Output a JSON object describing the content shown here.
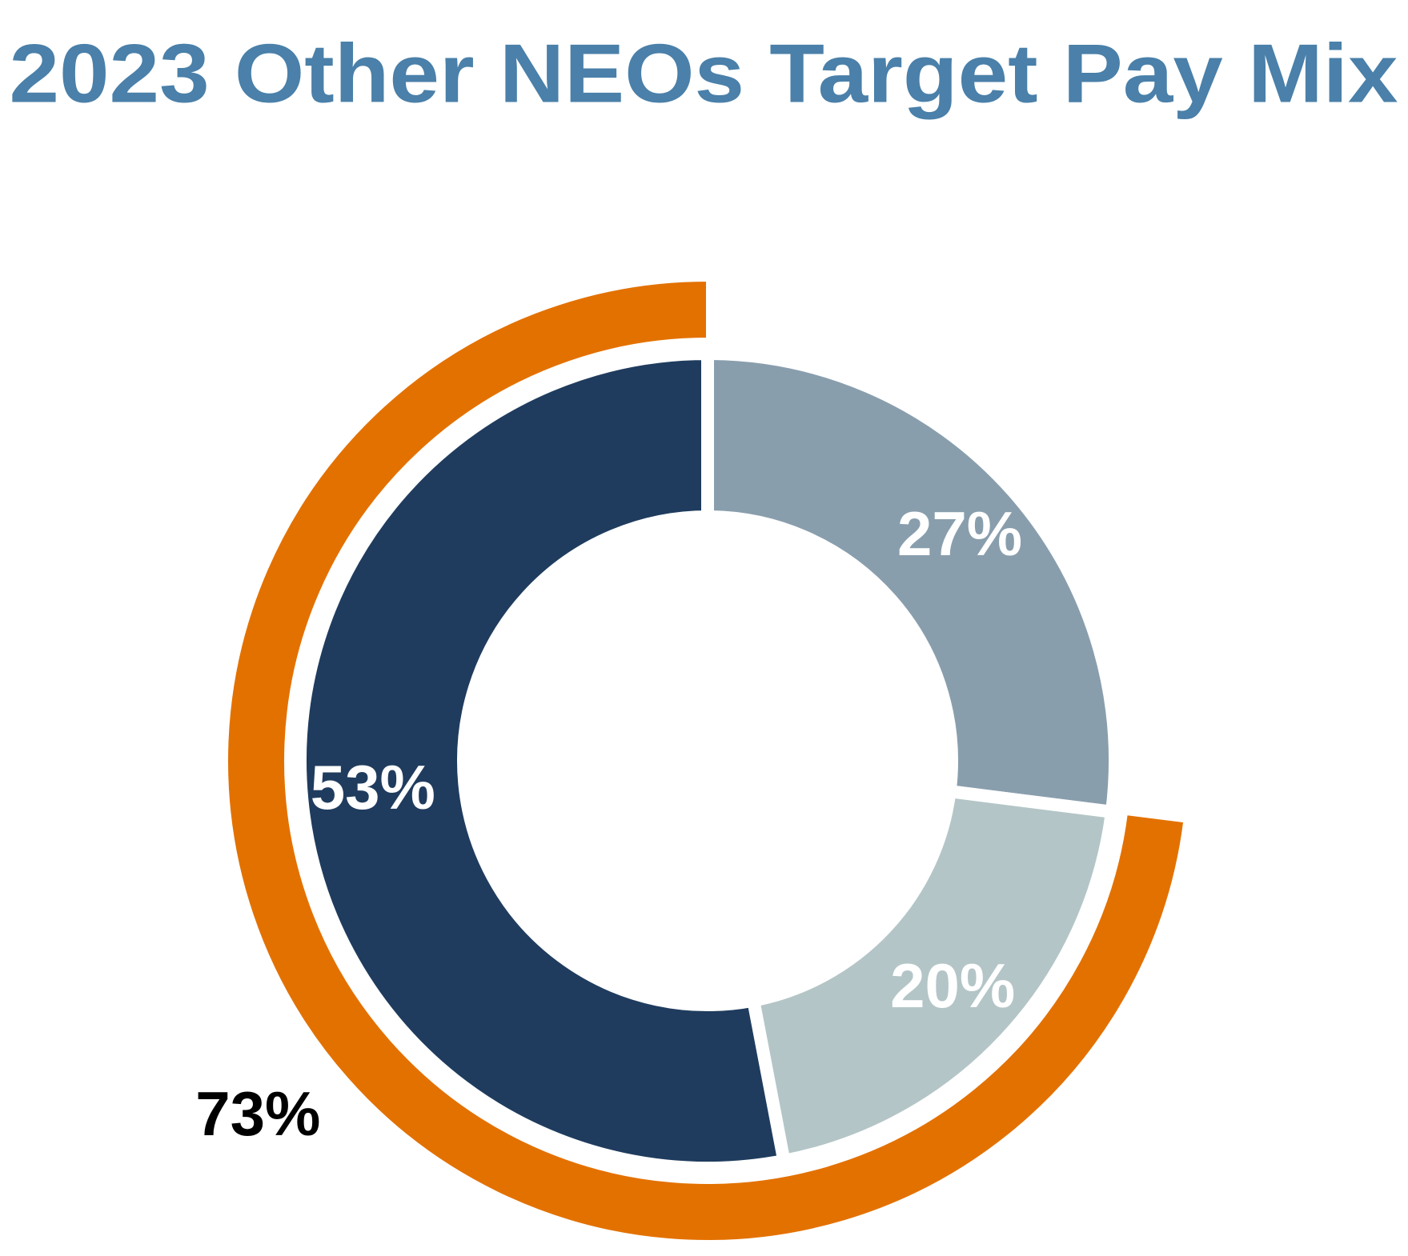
{
  "chart_data": {
    "type": "doughnut",
    "title": "2023 Other NEOs Target Pay Mix",
    "title_color": "#4a80a9",
    "inner": {
      "values": [
        27,
        20,
        53
      ],
      "value_labels": [
        "27%",
        "20%",
        "53%"
      ],
      "colors": [
        "#899ead",
        "#b4c5c7",
        "#1f3c5e"
      ],
      "label_color": "#ffffff"
    },
    "outer": {
      "values": [
        73
      ],
      "value_labels": [
        "73%"
      ],
      "colors": [
        "#e37100"
      ],
      "label_color": "#000000"
    }
  }
}
